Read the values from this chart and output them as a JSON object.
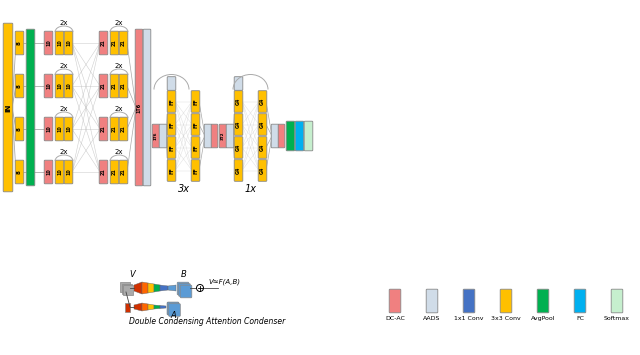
{
  "colors": {
    "dc_ac": "#F08080",
    "aads": "#D0DCE8",
    "conv1x1": "#4472C4",
    "conv3x3": "#FFC000",
    "avgpool": "#00B050",
    "fc": "#00B0F0",
    "softmax": "#C6EFCE",
    "yellow": "#FFC000",
    "pink": "#F08080",
    "green": "#00B050",
    "blue": "#4472C4",
    "light_blue": "#D0DCE8",
    "teal": "#00B0F0",
    "light_green": "#C6EFCE",
    "gray": "#AAAAAA",
    "orange": "#FF8C00",
    "red_orange": "#E03000"
  },
  "legend_items": [
    {
      "label": "DC-AC",
      "color": "#F08080"
    },
    {
      "label": "AADS",
      "color": "#D0DCE8"
    },
    {
      "label": "1x1 Conv",
      "color": "#4472C4"
    },
    {
      "label": "3x3 Conv",
      "color": "#FFC000"
    },
    {
      "label": "AvgPool",
      "color": "#00B050"
    },
    {
      "label": "FC",
      "color": "#00B0F0"
    },
    {
      "label": "Softmax",
      "color": "#C6EFCE"
    }
  ],
  "dc_ac_label": "Double Condensing Attention Condenser",
  "label_3x": "3x",
  "label_1x": "1x",
  "label_2x": "2x"
}
